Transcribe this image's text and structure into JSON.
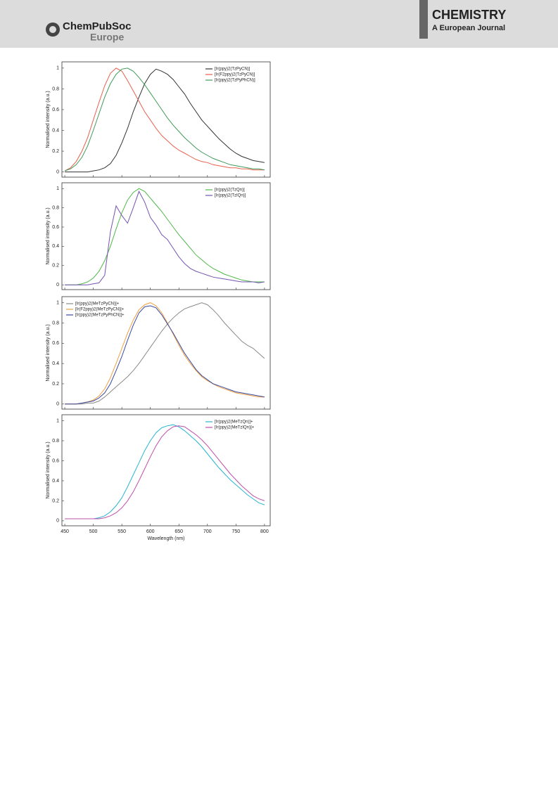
{
  "header": {
    "logo_name": "ChemPubSoc",
    "logo_sub": "Europe",
    "journal": "CHEMISTRY",
    "journal_sub": "A European Journal"
  },
  "chart_data": [
    {
      "type": "line",
      "y_label": "Normalised intensity (a.u.)",
      "legend": "upper right",
      "x": [
        450,
        460,
        470,
        480,
        490,
        500,
        510,
        520,
        530,
        540,
        550,
        560,
        570,
        580,
        590,
        600,
        610,
        620,
        630,
        640,
        650,
        660,
        670,
        680,
        690,
        700,
        710,
        720,
        730,
        740,
        750,
        760,
        770,
        780,
        790,
        800
      ],
      "xlim": [
        445,
        810
      ],
      "xticks": [
        450,
        500,
        550,
        600,
        650,
        700,
        750,
        800
      ],
      "ylim": [
        -0.05,
        1.06
      ],
      "yticks": [
        0,
        0.2,
        0.4,
        0.6,
        0.8,
        1
      ],
      "series": [
        {
          "name": "[Ir(ppy)2(TzPyCN)]",
          "color": "#333333",
          "values": [
            0,
            0,
            0,
            0,
            0,
            0.01,
            0.02,
            0.04,
            0.08,
            0.16,
            0.28,
            0.42,
            0.58,
            0.72,
            0.85,
            0.94,
            0.99,
            0.97,
            0.94,
            0.89,
            0.82,
            0.75,
            0.66,
            0.58,
            0.5,
            0.44,
            0.38,
            0.32,
            0.27,
            0.22,
            0.18,
            0.15,
            0.13,
            0.11,
            0.1,
            0.09
          ]
        },
        {
          "name": "[Ir(F2ppy)2(TzPyCN)]",
          "color": "#e8604c",
          "values": [
            0.01,
            0.04,
            0.1,
            0.2,
            0.33,
            0.5,
            0.67,
            0.83,
            0.95,
            1.0,
            0.97,
            0.88,
            0.78,
            0.68,
            0.58,
            0.5,
            0.42,
            0.35,
            0.3,
            0.25,
            0.21,
            0.18,
            0.15,
            0.12,
            0.1,
            0.09,
            0.07,
            0.06,
            0.05,
            0.04,
            0.04,
            0.03,
            0.03,
            0.02,
            0.02,
            0.02
          ]
        },
        {
          "name": "[Ir(ppy)2(TzPyPhCN)]",
          "color": "#3f9a5a",
          "values": [
            0.01,
            0.03,
            0.07,
            0.14,
            0.25,
            0.4,
            0.56,
            0.72,
            0.85,
            0.94,
            0.99,
            1.0,
            0.97,
            0.91,
            0.84,
            0.76,
            0.68,
            0.6,
            0.52,
            0.45,
            0.39,
            0.33,
            0.28,
            0.23,
            0.19,
            0.16,
            0.13,
            0.11,
            0.09,
            0.07,
            0.06,
            0.05,
            0.04,
            0.03,
            0.03,
            0.02
          ]
        }
      ]
    },
    {
      "type": "line",
      "y_label": "Normalised intensity (a.u.)",
      "legend": "upper right",
      "x": [
        450,
        460,
        470,
        480,
        490,
        500,
        510,
        520,
        530,
        540,
        550,
        560,
        570,
        580,
        590,
        600,
        610,
        620,
        630,
        640,
        650,
        660,
        670,
        680,
        690,
        700,
        710,
        720,
        730,
        740,
        750,
        760,
        770,
        780,
        790,
        800
      ],
      "xlim": [
        445,
        810
      ],
      "xticks": [
        450,
        500,
        550,
        600,
        650,
        700,
        750,
        800
      ],
      "ylim": [
        -0.05,
        1.06
      ],
      "yticks": [
        0,
        0.2,
        0.4,
        0.6,
        0.8,
        1
      ],
      "series": [
        {
          "name": "[Ir(ppy)2(TzQn)]",
          "color": "#4fb848",
          "values": [
            0,
            0,
            0,
            0.01,
            0.03,
            0.07,
            0.14,
            0.25,
            0.4,
            0.58,
            0.75,
            0.88,
            0.96,
            1.0,
            0.97,
            0.9,
            0.83,
            0.76,
            0.68,
            0.6,
            0.52,
            0.45,
            0.38,
            0.31,
            0.26,
            0.21,
            0.17,
            0.14,
            0.11,
            0.09,
            0.07,
            0.05,
            0.04,
            0.03,
            0.03,
            0.03
          ]
        },
        {
          "name": "[Ir(ppy)2(TzIQn)]",
          "color": "#7454b0",
          "values": [
            0,
            0,
            0,
            0,
            0,
            0.01,
            0.02,
            0.1,
            0.55,
            0.82,
            0.72,
            0.64,
            0.8,
            0.97,
            0.86,
            0.7,
            0.62,
            0.52,
            0.47,
            0.38,
            0.29,
            0.22,
            0.17,
            0.14,
            0.12,
            0.1,
            0.08,
            0.07,
            0.06,
            0.05,
            0.04,
            0.03,
            0.03,
            0.03,
            0.02,
            0.03
          ]
        }
      ]
    },
    {
      "type": "line",
      "y_label": "Normalised intensity (a.u.)",
      "legend": "upper left",
      "x": [
        450,
        460,
        470,
        480,
        490,
        500,
        510,
        520,
        530,
        540,
        550,
        560,
        570,
        580,
        590,
        600,
        610,
        620,
        630,
        640,
        650,
        660,
        670,
        680,
        690,
        700,
        710,
        720,
        730,
        740,
        750,
        760,
        770,
        780,
        790,
        800
      ],
      "xlim": [
        445,
        810
      ],
      "xticks": [
        450,
        500,
        550,
        600,
        650,
        700,
        750,
        800
      ],
      "ylim": [
        -0.05,
        1.06
      ],
      "yticks": [
        0,
        0.2,
        0.4,
        0.6,
        0.8,
        1
      ],
      "series": [
        {
          "name": "[Ir(ppy)2(MeTzPyCN)]+",
          "color": "#8a8a8a",
          "values": [
            0,
            0,
            0,
            0,
            0.01,
            0.01,
            0.03,
            0.07,
            0.12,
            0.17,
            0.22,
            0.27,
            0.33,
            0.4,
            0.48,
            0.56,
            0.64,
            0.72,
            0.79,
            0.85,
            0.9,
            0.94,
            0.96,
            0.98,
            1.0,
            0.98,
            0.93,
            0.87,
            0.8,
            0.74,
            0.68,
            0.62,
            0.58,
            0.55,
            0.5,
            0.45
          ]
        },
        {
          "name": "[Ir(F2ppy)2(MeTzPyCN)]+",
          "color": "#f0a040",
          "values": [
            0,
            0,
            0,
            0.01,
            0.02,
            0.04,
            0.08,
            0.15,
            0.26,
            0.4,
            0.55,
            0.7,
            0.83,
            0.93,
            0.98,
            1.0,
            0.97,
            0.9,
            0.8,
            0.69,
            0.58,
            0.48,
            0.4,
            0.33,
            0.27,
            0.23,
            0.2,
            0.17,
            0.15,
            0.13,
            0.11,
            0.1,
            0.09,
            0.08,
            0.07,
            0.07
          ]
        },
        {
          "name": "[Ir(ppy)2(MeTzPyPhCN)]+",
          "color": "#3a4aa0",
          "values": [
            0,
            0,
            0,
            0.01,
            0.02,
            0.03,
            0.06,
            0.11,
            0.2,
            0.33,
            0.47,
            0.63,
            0.78,
            0.9,
            0.96,
            0.97,
            0.95,
            0.88,
            0.79,
            0.7,
            0.6,
            0.5,
            0.42,
            0.34,
            0.28,
            0.24,
            0.2,
            0.18,
            0.16,
            0.14,
            0.12,
            0.11,
            0.1,
            0.09,
            0.08,
            0.07
          ]
        }
      ]
    },
    {
      "type": "line",
      "y_label": "Normalised intensity (a.u.)",
      "x_label": "Wavelength (nm)",
      "legend": "upper right",
      "x": [
        450,
        460,
        470,
        480,
        490,
        500,
        510,
        520,
        530,
        540,
        550,
        560,
        570,
        580,
        590,
        600,
        610,
        620,
        630,
        640,
        650,
        660,
        670,
        680,
        690,
        700,
        710,
        720,
        730,
        740,
        750,
        760,
        770,
        780,
        790,
        800
      ],
      "xlim": [
        445,
        810
      ],
      "xticks": [
        450,
        500,
        550,
        600,
        650,
        700,
        750,
        800
      ],
      "ylim": [
        -0.05,
        1.06
      ],
      "yticks": [
        0,
        0.2,
        0.4,
        0.6,
        0.8,
        1
      ],
      "series": [
        {
          "name": "[Ir(ppy)2(MeTzQn)]+",
          "color": "#29b5d0",
          "values": [
            0.02,
            0.02,
            0.02,
            0.02,
            0.02,
            0.02,
            0.03,
            0.05,
            0.09,
            0.15,
            0.23,
            0.34,
            0.46,
            0.58,
            0.7,
            0.8,
            0.88,
            0.93,
            0.95,
            0.96,
            0.94,
            0.9,
            0.85,
            0.8,
            0.74,
            0.67,
            0.6,
            0.53,
            0.47,
            0.41,
            0.36,
            0.31,
            0.26,
            0.22,
            0.18,
            0.16
          ]
        },
        {
          "name": "[Ir(ppy)2(MeTzIQn)]+",
          "color": "#c050a8",
          "values": [
            0.02,
            0.02,
            0.02,
            0.02,
            0.02,
            0.02,
            0.02,
            0.03,
            0.05,
            0.08,
            0.13,
            0.2,
            0.29,
            0.4,
            0.52,
            0.64,
            0.75,
            0.84,
            0.9,
            0.94,
            0.95,
            0.94,
            0.9,
            0.86,
            0.81,
            0.75,
            0.68,
            0.61,
            0.54,
            0.47,
            0.41,
            0.35,
            0.3,
            0.25,
            0.22,
            0.2
          ]
        }
      ]
    }
  ]
}
